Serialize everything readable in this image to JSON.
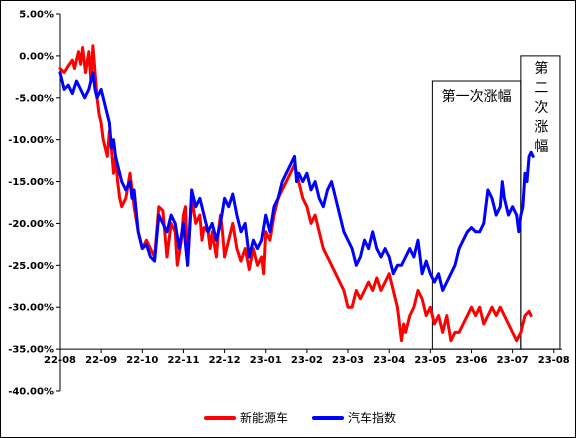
{
  "chart_data": {
    "type": "line",
    "title": "",
    "xlabel": "",
    "ylabel": "",
    "ylim": [
      -40,
      5
    ],
    "y_ticks": [
      {
        "value": 5,
        "label": "5.00%"
      },
      {
        "value": 0,
        "label": "0.00%"
      },
      {
        "value": -5,
        "label": "-5.00%"
      },
      {
        "value": -10,
        "label": "-10.00%"
      },
      {
        "value": -15,
        "label": "-15.00%"
      },
      {
        "value": -20,
        "label": "-20.00%"
      },
      {
        "value": -25,
        "label": "-25.00%"
      },
      {
        "value": -30,
        "label": "-30.00%"
      },
      {
        "value": -35,
        "label": "-35.00%"
      },
      {
        "value": -40,
        "label": "-40.00%"
      }
    ],
    "x_axis_at": -35,
    "x_range": [
      0,
      12.2
    ],
    "x_ticks": [
      "22-08",
      "22-09",
      "22-10",
      "22-11",
      "22-12",
      "23-01",
      "23-02",
      "23-03",
      "23-04",
      "23-05",
      "23-06",
      "23-07",
      "23-08"
    ],
    "grid": false,
    "legend_position": "bottom",
    "series": [
      {
        "name": "新能源车",
        "color": "#ff0000",
        "points": [
          [
            0,
            -1.5
          ],
          [
            0.1,
            -2
          ],
          [
            0.2,
            -1.2
          ],
          [
            0.3,
            -0.5
          ],
          [
            0.35,
            -1.5
          ],
          [
            0.45,
            0.5
          ],
          [
            0.5,
            -1
          ],
          [
            0.55,
            1
          ],
          [
            0.62,
            -2
          ],
          [
            0.7,
            0.5
          ],
          [
            0.75,
            -3
          ],
          [
            0.8,
            1.2
          ],
          [
            0.85,
            -2
          ],
          [
            0.9,
            -5
          ],
          [
            0.95,
            -7
          ],
          [
            1.0,
            -8
          ],
          [
            1.05,
            -10
          ],
          [
            1.15,
            -12
          ],
          [
            1.2,
            -9
          ],
          [
            1.25,
            -11
          ],
          [
            1.3,
            -14
          ],
          [
            1.35,
            -12
          ],
          [
            1.4,
            -15
          ],
          [
            1.45,
            -17
          ],
          [
            1.5,
            -18
          ],
          [
            1.6,
            -17
          ],
          [
            1.7,
            -14
          ],
          [
            1.75,
            -16
          ],
          [
            1.8,
            -18
          ],
          [
            1.9,
            -21
          ],
          [
            2.0,
            -23
          ],
          [
            2.1,
            -22
          ],
          [
            2.2,
            -23
          ],
          [
            2.3,
            -24
          ],
          [
            2.4,
            -18
          ],
          [
            2.5,
            -18.5
          ],
          [
            2.6,
            -24
          ],
          [
            2.7,
            -20
          ],
          [
            2.8,
            -21
          ],
          [
            2.85,
            -25
          ],
          [
            2.95,
            -22
          ],
          [
            3.0,
            -19
          ],
          [
            3.05,
            -18
          ],
          [
            3.1,
            -25
          ],
          [
            3.2,
            -17
          ],
          [
            3.3,
            -20
          ],
          [
            3.4,
            -19
          ],
          [
            3.45,
            -22
          ],
          [
            3.5,
            -20.5
          ],
          [
            3.6,
            -21
          ],
          [
            3.65,
            -23
          ],
          [
            3.7,
            -21
          ],
          [
            3.8,
            -24
          ],
          [
            3.85,
            -21
          ],
          [
            3.9,
            -19
          ],
          [
            3.95,
            -21
          ],
          [
            4.0,
            -24
          ],
          [
            4.1,
            -22
          ],
          [
            4.2,
            -20
          ],
          [
            4.3,
            -23
          ],
          [
            4.4,
            -24.5
          ],
          [
            4.5,
            -23
          ],
          [
            4.6,
            -25.5
          ],
          [
            4.7,
            -23
          ],
          [
            4.8,
            -25
          ],
          [
            4.9,
            -24
          ],
          [
            4.95,
            -26
          ],
          [
            5.0,
            -21
          ],
          [
            5.1,
            -22
          ],
          [
            5.2,
            -19
          ],
          [
            5.3,
            -17
          ],
          [
            5.4,
            -16
          ],
          [
            5.5,
            -15
          ],
          [
            5.6,
            -14
          ],
          [
            5.7,
            -13
          ],
          [
            5.8,
            -15
          ],
          [
            5.9,
            -17
          ],
          [
            6.0,
            -18
          ],
          [
            6.1,
            -20
          ],
          [
            6.2,
            -19
          ],
          [
            6.3,
            -21
          ],
          [
            6.4,
            -23
          ],
          [
            6.5,
            -24
          ],
          [
            6.6,
            -25
          ],
          [
            6.7,
            -26
          ],
          [
            6.8,
            -27
          ],
          [
            6.9,
            -28
          ],
          [
            7.0,
            -30
          ],
          [
            7.1,
            -30
          ],
          [
            7.2,
            -28
          ],
          [
            7.3,
            -29
          ],
          [
            7.4,
            -28
          ],
          [
            7.5,
            -27
          ],
          [
            7.6,
            -28
          ],
          [
            7.7,
            -26.5
          ],
          [
            7.8,
            -28
          ],
          [
            7.9,
            -27
          ],
          [
            8.0,
            -26
          ],
          [
            8.1,
            -28
          ],
          [
            8.2,
            -30
          ],
          [
            8.3,
            -34
          ],
          [
            8.35,
            -32
          ],
          [
            8.4,
            -33
          ],
          [
            8.5,
            -31
          ],
          [
            8.6,
            -30
          ],
          [
            8.7,
            -28
          ],
          [
            8.8,
            -29
          ],
          [
            8.9,
            -31
          ],
          [
            9.0,
            -30
          ],
          [
            9.1,
            -32
          ],
          [
            9.2,
            -31
          ],
          [
            9.3,
            -33
          ],
          [
            9.4,
            -31
          ],
          [
            9.5,
            -34
          ],
          [
            9.6,
            -33
          ],
          [
            9.7,
            -33
          ],
          [
            9.8,
            -32
          ],
          [
            9.9,
            -31
          ],
          [
            10.0,
            -30
          ],
          [
            10.1,
            -31
          ],
          [
            10.2,
            -30
          ],
          [
            10.3,
            -32
          ],
          [
            10.4,
            -31
          ],
          [
            10.5,
            -30
          ],
          [
            10.6,
            -31
          ],
          [
            10.7,
            -30
          ],
          [
            10.8,
            -31
          ],
          [
            10.9,
            -32
          ],
          [
            11.0,
            -33
          ],
          [
            11.1,
            -34
          ],
          [
            11.2,
            -33
          ],
          [
            11.3,
            -31
          ],
          [
            11.4,
            -30.5
          ],
          [
            11.45,
            -31
          ]
        ]
      },
      {
        "name": "汽车指数",
        "color": "#0000ff",
        "points": [
          [
            0,
            -2
          ],
          [
            0.1,
            -4
          ],
          [
            0.2,
            -3.5
          ],
          [
            0.3,
            -4.5
          ],
          [
            0.4,
            -3
          ],
          [
            0.5,
            -4
          ],
          [
            0.6,
            -5
          ],
          [
            0.7,
            -4
          ],
          [
            0.8,
            -2
          ],
          [
            0.85,
            -4
          ],
          [
            0.9,
            -5
          ],
          [
            1.0,
            -4
          ],
          [
            1.05,
            -5
          ],
          [
            1.15,
            -7
          ],
          [
            1.2,
            -8
          ],
          [
            1.25,
            -11
          ],
          [
            1.3,
            -10
          ],
          [
            1.35,
            -12
          ],
          [
            1.4,
            -13
          ],
          [
            1.5,
            -15
          ],
          [
            1.6,
            -16
          ],
          [
            1.7,
            -15
          ],
          [
            1.75,
            -17
          ],
          [
            1.8,
            -16
          ],
          [
            1.9,
            -21
          ],
          [
            2.0,
            -23
          ],
          [
            2.1,
            -22.5
          ],
          [
            2.2,
            -24
          ],
          [
            2.3,
            -24.5
          ],
          [
            2.4,
            -19
          ],
          [
            2.5,
            -20
          ],
          [
            2.6,
            -21
          ],
          [
            2.7,
            -19
          ],
          [
            2.8,
            -20
          ],
          [
            2.9,
            -23
          ],
          [
            3.0,
            -20
          ],
          [
            3.1,
            -25
          ],
          [
            3.2,
            -16
          ],
          [
            3.3,
            -18
          ],
          [
            3.4,
            -17
          ],
          [
            3.5,
            -19
          ],
          [
            3.6,
            -21
          ],
          [
            3.7,
            -20
          ],
          [
            3.8,
            -22
          ],
          [
            3.9,
            -20
          ],
          [
            4.0,
            -17
          ],
          [
            4.1,
            -18
          ],
          [
            4.2,
            -16.5
          ],
          [
            4.3,
            -19
          ],
          [
            4.4,
            -21
          ],
          [
            4.5,
            -20
          ],
          [
            4.6,
            -24
          ],
          [
            4.7,
            -22
          ],
          [
            4.8,
            -23
          ],
          [
            4.9,
            -22
          ],
          [
            5.0,
            -19
          ],
          [
            5.1,
            -21
          ],
          [
            5.2,
            -18
          ],
          [
            5.3,
            -17
          ],
          [
            5.4,
            -15
          ],
          [
            5.5,
            -14
          ],
          [
            5.6,
            -13
          ],
          [
            5.7,
            -12
          ],
          [
            5.75,
            -15
          ],
          [
            5.8,
            -14
          ],
          [
            5.9,
            -15
          ],
          [
            6.0,
            -14
          ],
          [
            6.1,
            -16
          ],
          [
            6.2,
            -15
          ],
          [
            6.3,
            -17
          ],
          [
            6.4,
            -18
          ],
          [
            6.5,
            -16
          ],
          [
            6.6,
            -15
          ],
          [
            6.7,
            -17
          ],
          [
            6.8,
            -19
          ],
          [
            6.9,
            -21
          ],
          [
            7.0,
            -22
          ],
          [
            7.1,
            -23
          ],
          [
            7.2,
            -25
          ],
          [
            7.3,
            -24
          ],
          [
            7.4,
            -22
          ],
          [
            7.5,
            -23
          ],
          [
            7.6,
            -21
          ],
          [
            7.7,
            -23
          ],
          [
            7.8,
            -24
          ],
          [
            7.9,
            -23
          ],
          [
            8.0,
            -24
          ],
          [
            8.1,
            -26
          ],
          [
            8.2,
            -25
          ],
          [
            8.3,
            -25
          ],
          [
            8.4,
            -24
          ],
          [
            8.5,
            -23
          ],
          [
            8.6,
            -24
          ],
          [
            8.7,
            -22
          ],
          [
            8.8,
            -26
          ],
          [
            8.9,
            -24.5
          ],
          [
            9.0,
            -26
          ],
          [
            9.1,
            -27
          ],
          [
            9.2,
            -26
          ],
          [
            9.3,
            -28
          ],
          [
            9.4,
            -27
          ],
          [
            9.5,
            -26
          ],
          [
            9.6,
            -25
          ],
          [
            9.7,
            -23
          ],
          [
            9.8,
            -22
          ],
          [
            9.9,
            -21
          ],
          [
            10.0,
            -20.5
          ],
          [
            10.1,
            -21
          ],
          [
            10.2,
            -21
          ],
          [
            10.3,
            -20
          ],
          [
            10.4,
            -16
          ],
          [
            10.5,
            -17
          ],
          [
            10.6,
            -19
          ],
          [
            10.7,
            -18
          ],
          [
            10.75,
            -15
          ],
          [
            10.8,
            -17
          ],
          [
            10.9,
            -19
          ],
          [
            11.0,
            -18
          ],
          [
            11.1,
            -19
          ],
          [
            11.15,
            -21
          ],
          [
            11.2,
            -19
          ],
          [
            11.25,
            -18
          ],
          [
            11.3,
            -14
          ],
          [
            11.35,
            -15
          ],
          [
            11.4,
            -12
          ],
          [
            11.45,
            -11.5
          ],
          [
            11.5,
            -12
          ]
        ]
      }
    ],
    "annotations": [
      {
        "label": "第一次涨幅",
        "x_start": 9.05,
        "x_end": 11.2,
        "y_top": -3,
        "y_bottom": -35
      },
      {
        "label": "第二次涨幅",
        "x_start": 11.2,
        "x_end": 12.15,
        "y_top": 0,
        "y_bottom": -35
      }
    ]
  }
}
